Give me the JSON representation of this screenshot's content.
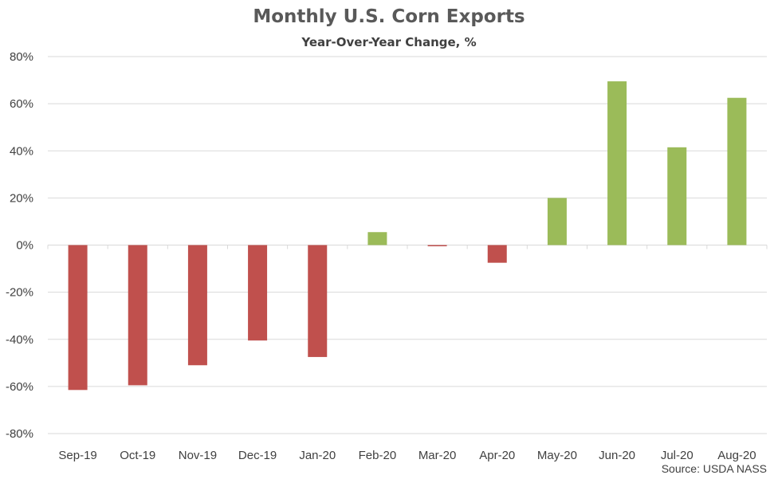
{
  "chart_data": {
    "type": "bar",
    "title": "Monthly U.S. Corn Exports",
    "subtitle": "Year-Over-Year Change, %",
    "categories": [
      "Sep-19",
      "Oct-19",
      "Nov-19",
      "Dec-19",
      "Jan-20",
      "Feb-20",
      "Mar-20",
      "Apr-20",
      "May-20",
      "Jun-20",
      "Jul-20",
      "Aug-20"
    ],
    "values": [
      -61.5,
      -59.5,
      -51.0,
      -40.5,
      -47.5,
      5.5,
      -0.5,
      -7.5,
      20.0,
      69.5,
      41.5,
      62.5
    ],
    "ylim": [
      -80,
      80
    ],
    "yticks": [
      80,
      60,
      40,
      20,
      0,
      -20,
      -40,
      -60,
      -80
    ],
    "ytick_labels": [
      "80%",
      "60%",
      "40%",
      "20%",
      "0%",
      "-20%",
      "-40%",
      "-60%",
      "-80%"
    ],
    "grid": true,
    "colors": {
      "positive": "#9BBB59",
      "negative": "#C0504D",
      "grid": "#d9d9d9",
      "text": "#404040"
    },
    "source": "Source: USDA NASS"
  }
}
